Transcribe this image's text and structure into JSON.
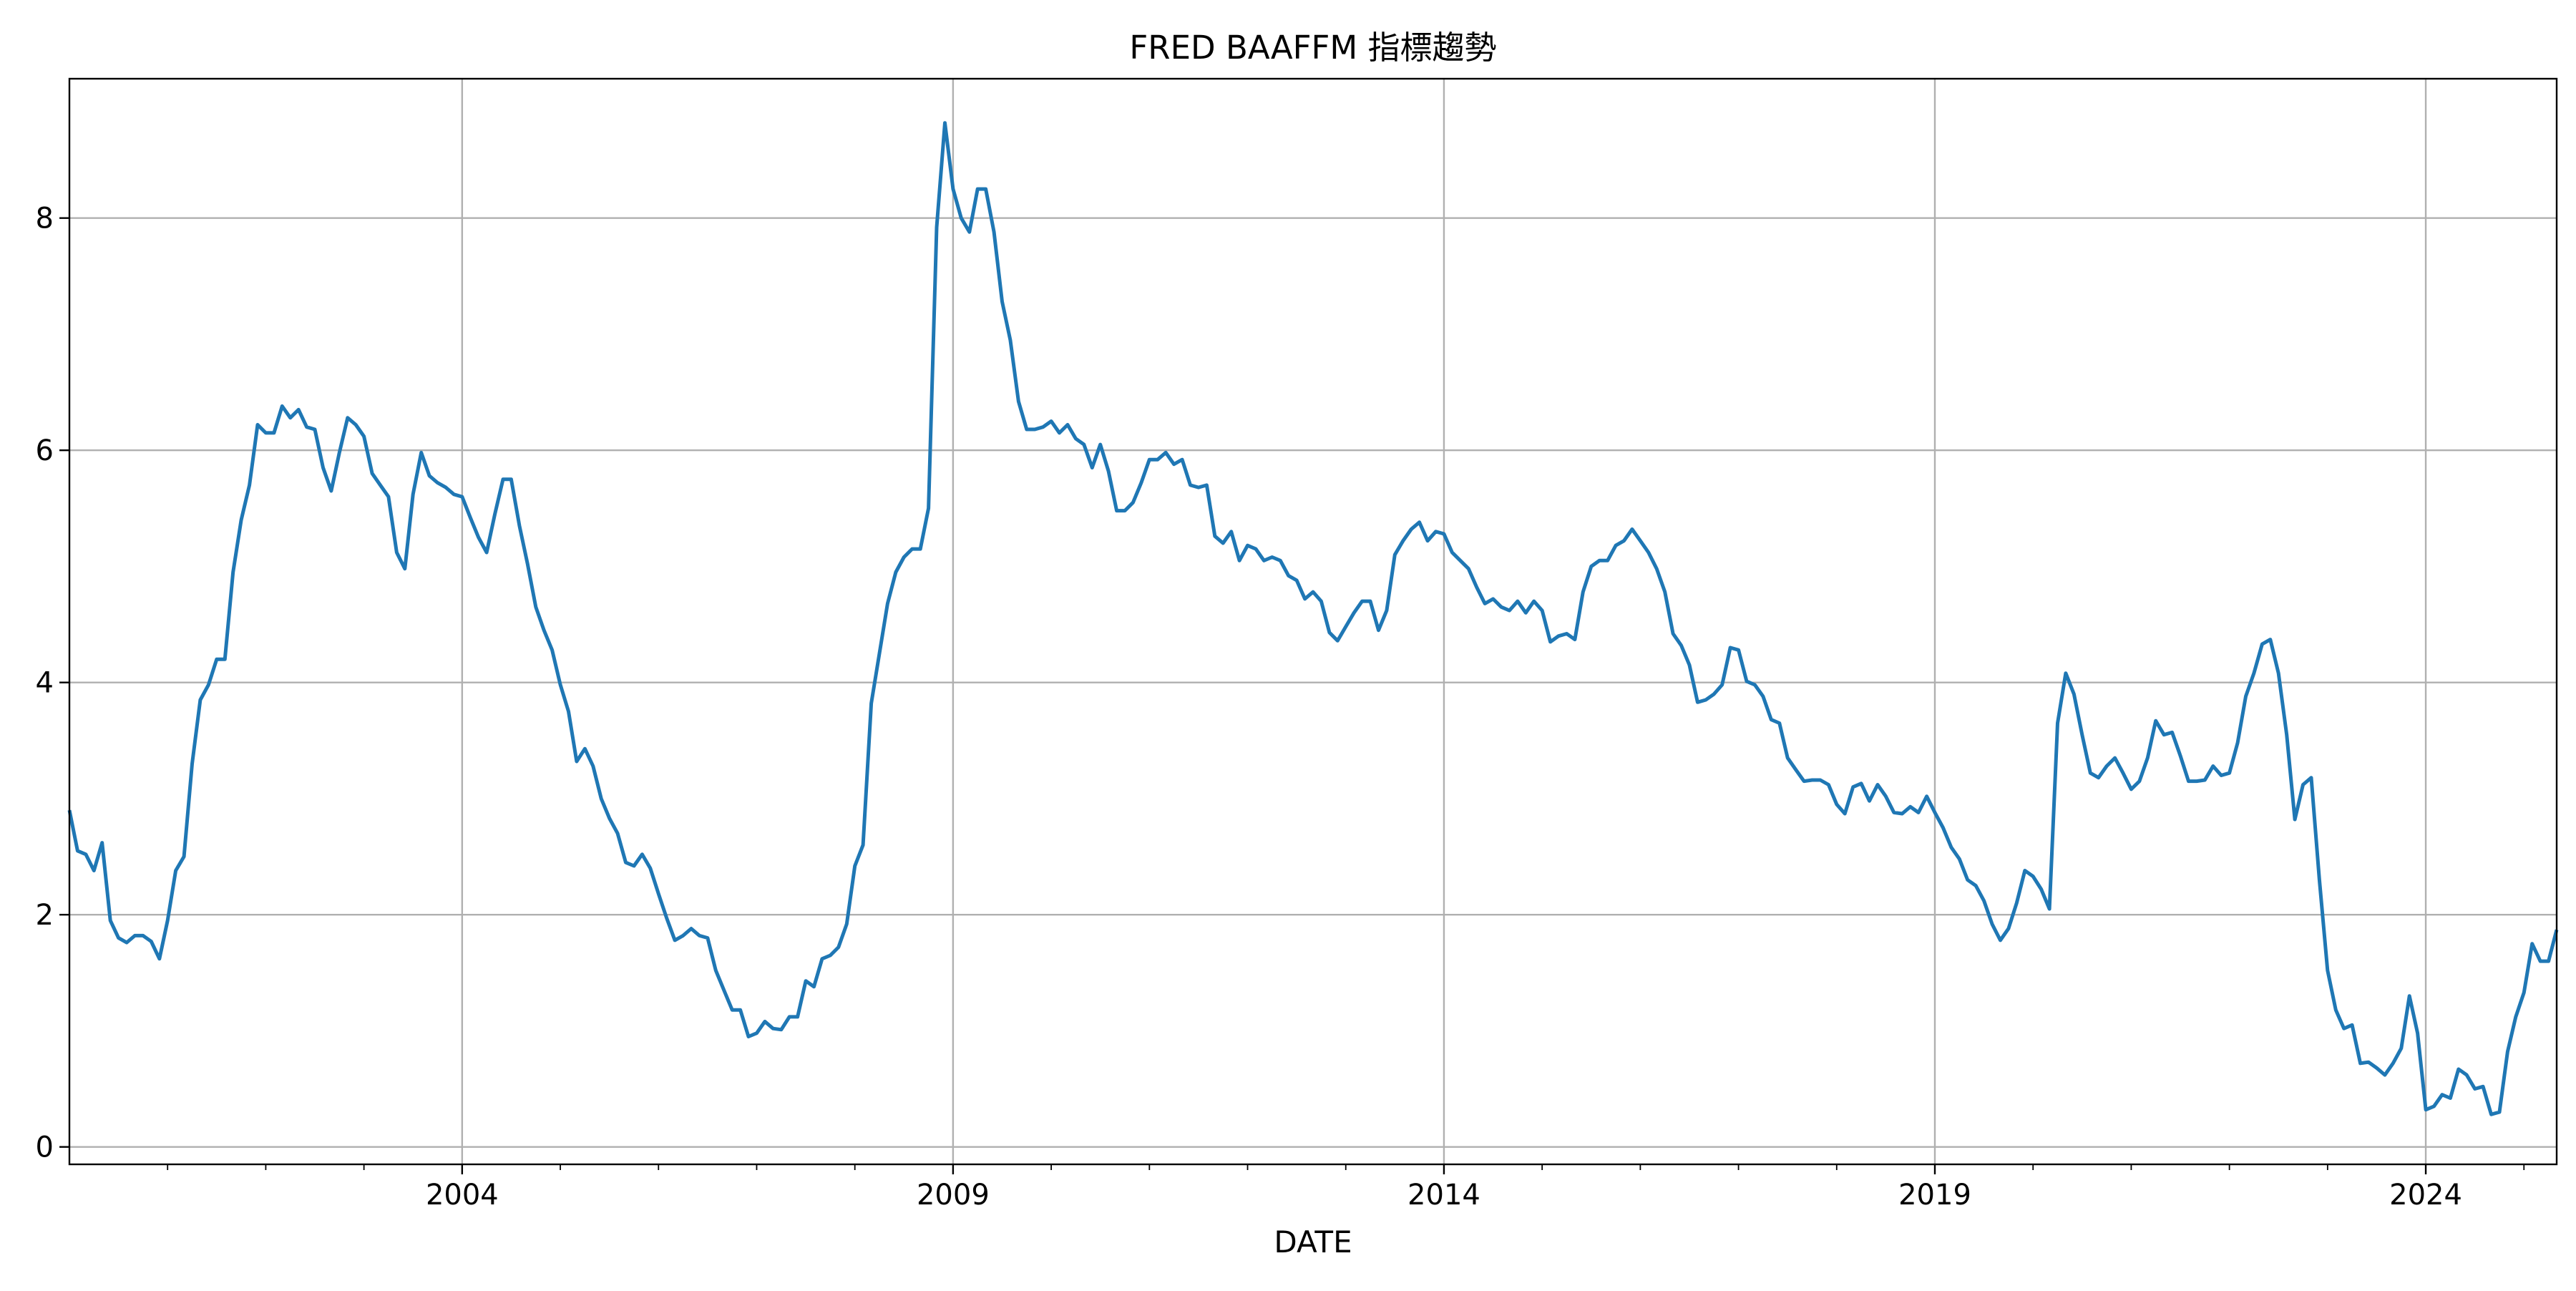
{
  "chart_data": {
    "type": "line",
    "title": "FRED BAAFFM 指標趨勢",
    "xlabel": "DATE",
    "ylabel": "",
    "x_start": "2000-01",
    "x_end": "2025-05",
    "xlim": [
      "2000-01",
      "2025-05"
    ],
    "ylim": [
      -0.15,
      9.2
    ],
    "x_ticks": [
      {
        "label": "2004",
        "x": "2004-01"
      },
      {
        "label": "2009",
        "x": "2009-01"
      },
      {
        "label": "2014",
        "x": "2014-01"
      },
      {
        "label": "2019",
        "x": "2019-01"
      },
      {
        "label": "2024",
        "x": "2024-01"
      }
    ],
    "minor_tick_years": [
      2001,
      2002,
      2003,
      2005,
      2006,
      2007,
      2008,
      2010,
      2011,
      2012,
      2013,
      2015,
      2016,
      2017,
      2018,
      2020,
      2021,
      2022,
      2023,
      2025
    ],
    "y_ticks": [
      0,
      2,
      4,
      6,
      8
    ],
    "grid": true,
    "line_color": "#1f77b4",
    "grid_color": "#b0b0b0",
    "series": [
      {
        "values": [
          2.9,
          2.55,
          2.52,
          2.38,
          2.62,
          1.95,
          1.8,
          1.76,
          1.82,
          1.82,
          1.77,
          1.62,
          1.95,
          2.38,
          2.5,
          3.3,
          3.85,
          3.98,
          4.2,
          4.2,
          4.95,
          5.4,
          5.7,
          6.22,
          6.15,
          6.15,
          6.38,
          6.28,
          6.35,
          6.2,
          6.18,
          5.85,
          5.65,
          5.98,
          6.28,
          6.22,
          6.12,
          5.8,
          5.7,
          5.6,
          5.12,
          4.98,
          5.62,
          5.98,
          5.78,
          5.72,
          5.68,
          5.62,
          5.6,
          5.42,
          5.25,
          5.12,
          5.45,
          5.75,
          5.75,
          5.35,
          5.02,
          4.65,
          4.45,
          4.28,
          3.98,
          3.75,
          3.32,
          3.43,
          3.28,
          3.0,
          2.83,
          2.7,
          2.45,
          2.42,
          2.52,
          2.4,
          2.18,
          1.97,
          1.78,
          1.82,
          1.88,
          1.82,
          1.8,
          1.52,
          1.35,
          1.18,
          1.18,
          0.95,
          0.98,
          1.08,
          1.02,
          1.01,
          1.12,
          1.12,
          1.43,
          1.38,
          1.62,
          1.65,
          1.72,
          1.92,
          2.42,
          2.6,
          3.82,
          4.25,
          4.68,
          4.95,
          5.08,
          5.15,
          5.15,
          5.5,
          7.92,
          8.82,
          8.25,
          8.0,
          7.88,
          8.25,
          8.25,
          7.88,
          7.28,
          6.95,
          6.42,
          6.18,
          6.18,
          6.2,
          6.25,
          6.15,
          6.22,
          6.1,
          6.05,
          5.85,
          6.05,
          5.82,
          5.48,
          5.48,
          5.55,
          5.72,
          5.92,
          5.92,
          5.98,
          5.88,
          5.92,
          5.7,
          5.68,
          5.7,
          5.26,
          5.2,
          5.3,
          5.05,
          5.18,
          5.15,
          5.05,
          5.08,
          5.05,
          4.92,
          4.88,
          4.72,
          4.78,
          4.7,
          4.43,
          4.36,
          4.48,
          4.6,
          4.7,
          4.7,
          4.45,
          4.62,
          5.1,
          5.22,
          5.32,
          5.38,
          5.22,
          5.3,
          5.28,
          5.12,
          5.05,
          4.98,
          4.82,
          4.68,
          4.72,
          4.65,
          4.62,
          4.7,
          4.6,
          4.7,
          4.62,
          4.35,
          4.4,
          4.42,
          4.37,
          4.78,
          5.0,
          5.05,
          5.05,
          5.18,
          5.22,
          5.32,
          5.22,
          5.12,
          4.98,
          4.78,
          4.42,
          4.32,
          4.15,
          3.83,
          3.85,
          3.9,
          3.98,
          4.3,
          4.28,
          4.01,
          3.98,
          3.88,
          3.68,
          3.65,
          3.35,
          3.25,
          3.15,
          3.16,
          3.16,
          3.12,
          2.95,
          2.87,
          3.1,
          3.13,
          2.98,
          3.12,
          3.02,
          2.88,
          2.87,
          2.93,
          2.88,
          3.02,
          2.88,
          2.75,
          2.58,
          2.48,
          2.3,
          2.25,
          2.12,
          1.92,
          1.78,
          1.88,
          2.1,
          2.38,
          2.33,
          2.22,
          2.05,
          3.65,
          4.08,
          3.9,
          3.55,
          3.22,
          3.18,
          3.28,
          3.35,
          3.22,
          3.08,
          3.15,
          3.35,
          3.67,
          3.55,
          3.57,
          3.37,
          3.15,
          3.15,
          3.16,
          3.28,
          3.2,
          3.22,
          3.48,
          3.88,
          4.08,
          4.33,
          4.37,
          4.08,
          3.55,
          2.82,
          3.12,
          3.18,
          2.3,
          1.52,
          1.18,
          1.02,
          1.05,
          0.72,
          0.73,
          0.68,
          0.62,
          0.72,
          0.85,
          1.3,
          0.98,
          0.32,
          0.35,
          0.45,
          0.42,
          0.67,
          0.62,
          0.5,
          0.52,
          0.28,
          0.3,
          0.82,
          1.12,
          1.33,
          1.75,
          1.6,
          1.6,
          1.87
        ]
      }
    ]
  }
}
